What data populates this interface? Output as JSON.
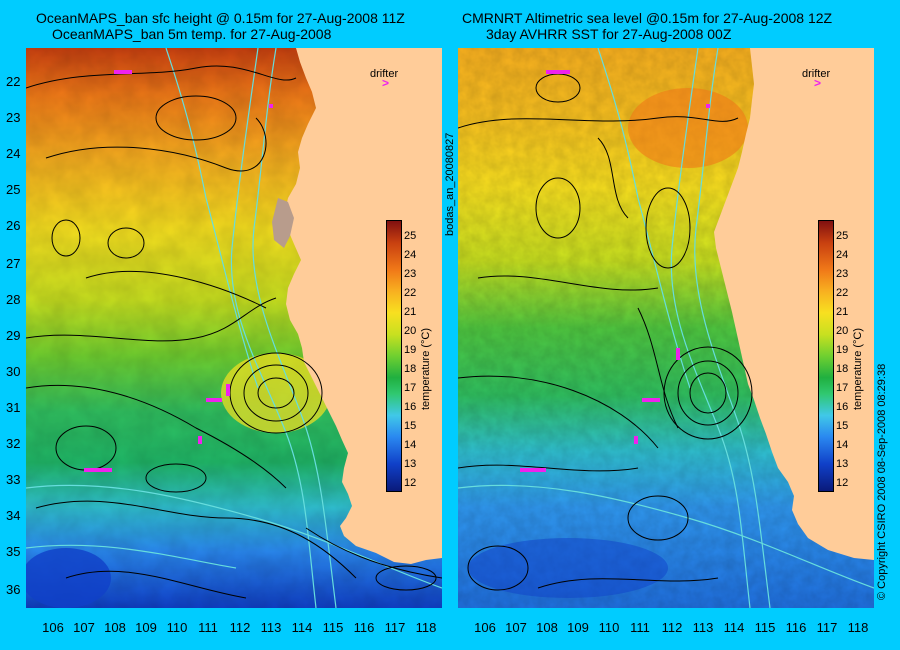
{
  "left_panel": {
    "title_line1": "OceanMAPS_ban sfc height @ 0.15m for 27-Aug-2008 11Z",
    "title_line2": "OceanMAPS_ban 5m temp. for 27-Aug-2008"
  },
  "right_panel": {
    "title_line1": "CMRNRT Altimetric sea level  @0.15m  for 27-Aug-2008 12Z",
    "title_line2": "3day AVHRR SST for 27-Aug-2008 00Z"
  },
  "y_ticks": [
    "22",
    "23",
    "24",
    "25",
    "26",
    "27",
    "28",
    "29",
    "30",
    "31",
    "32",
    "33",
    "34",
    "35",
    "36"
  ],
  "x_ticks": [
    "106",
    "107",
    "108",
    "109",
    "110",
    "111",
    "112",
    "113",
    "114",
    "115",
    "116",
    "117",
    "118"
  ],
  "drifter_label": "drifter",
  "drifter_symbol": ">",
  "colorbar": {
    "ticks": [
      "25",
      "24",
      "23",
      "22",
      "21",
      "20",
      "19",
      "18",
      "17",
      "16",
      "15",
      "14",
      "13",
      "12"
    ],
    "label": "temperature (°C)",
    "range": [
      11.5,
      26
    ],
    "colors": [
      "#0a1a7a",
      "#1040c8",
      "#2a88f0",
      "#40c8e8",
      "#30c870",
      "#20b040",
      "#70d030",
      "#c8e020",
      "#f8e020",
      "#f8b020",
      "#f07818",
      "#c84010",
      "#801010"
    ]
  },
  "side_label_center": "bodas_an_20080827",
  "side_label_right": "© Copyright CSIRO 2008   08-Sep-2008 08:29:38",
  "colors": {
    "background": "#00ccff",
    "land": "#ffcc99",
    "contour": "#000000",
    "bathymetry": "#66dddd",
    "drifter": "#ee22ee"
  }
}
